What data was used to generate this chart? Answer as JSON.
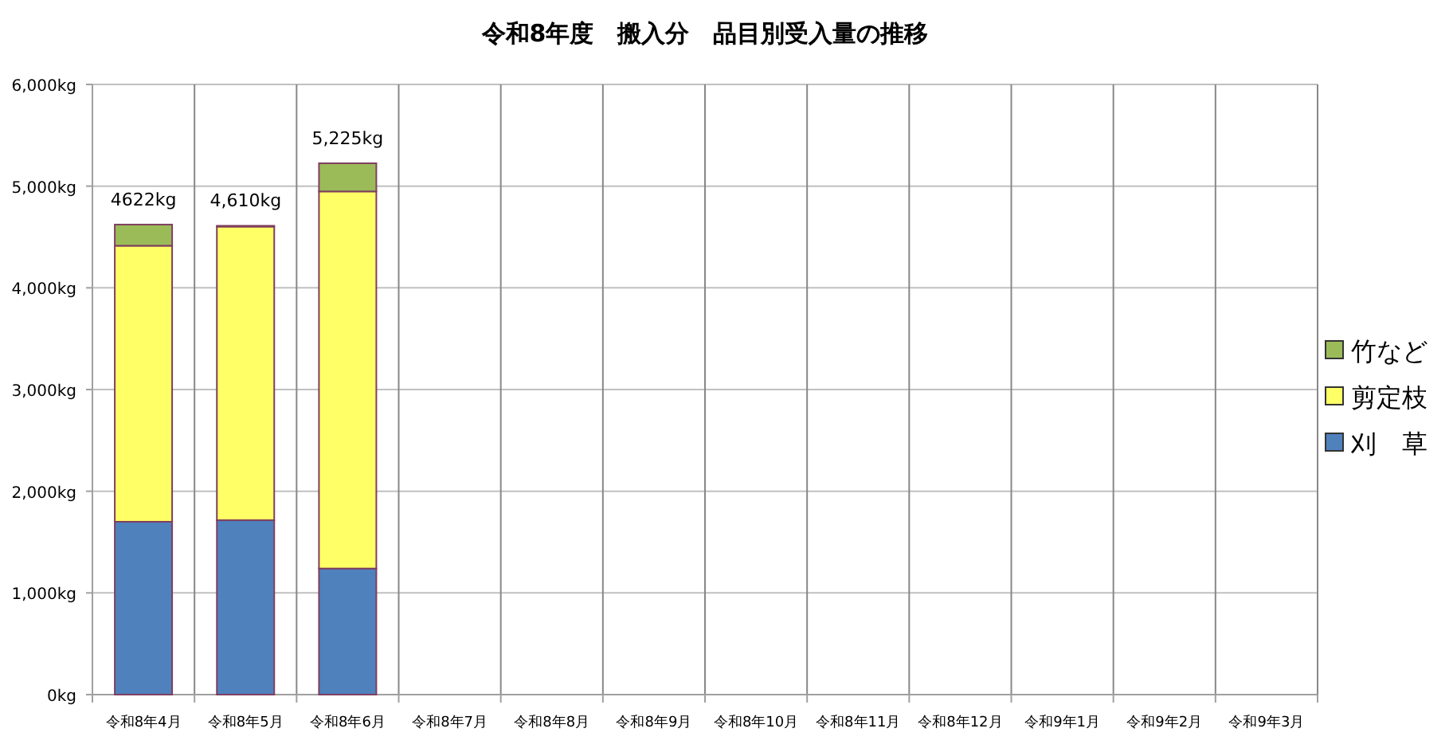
{
  "chart_data": {
    "type": "bar",
    "title": "令和8年度　搬入分　品目別受入量の推移",
    "categories": [
      "令和8年4月",
      "令和8年5月",
      "令和8年6月",
      "令和8年7月",
      "令和8年8月",
      "令和8年9月",
      "令和8年10月",
      "令和8年11月",
      "令和8年12月",
      "令和9年1月",
      "令和9年2月",
      "令和9年3月"
    ],
    "stacked": true,
    "series": [
      {
        "name": "刈　草",
        "color": "#4f81bd",
        "values": [
          1700,
          1715,
          1240,
          null,
          null,
          null,
          null,
          null,
          null,
          null,
          null,
          null
        ]
      },
      {
        "name": "剪定枝",
        "color": "#ffff66",
        "values": [
          2714,
          2887,
          3708,
          null,
          null,
          null,
          null,
          null,
          null,
          null,
          null,
          null
        ]
      },
      {
        "name": "竹など",
        "color": "#9bbb59",
        "values": [
          208,
          8,
          277,
          null,
          null,
          null,
          null,
          null,
          null,
          null,
          null,
          null
        ]
      }
    ],
    "totals": [
      "4622kg",
      "4,610kg",
      "5,225kg",
      null,
      null,
      null,
      null,
      null,
      null,
      null,
      null,
      null
    ],
    "ylim": [
      0,
      6000
    ],
    "yticks": [
      {
        "value": 0,
        "label": "0kg"
      },
      {
        "value": 1000,
        "label": "1,000kg"
      },
      {
        "value": 2000,
        "label": "2,000kg"
      },
      {
        "value": 3000,
        "label": "3,000kg"
      },
      {
        "value": 4000,
        "label": "4,000kg"
      },
      {
        "value": 5000,
        "label": "5,000kg"
      },
      {
        "value": 6000,
        "label": "6,000kg"
      }
    ],
    "grid": true,
    "legend": "right"
  }
}
